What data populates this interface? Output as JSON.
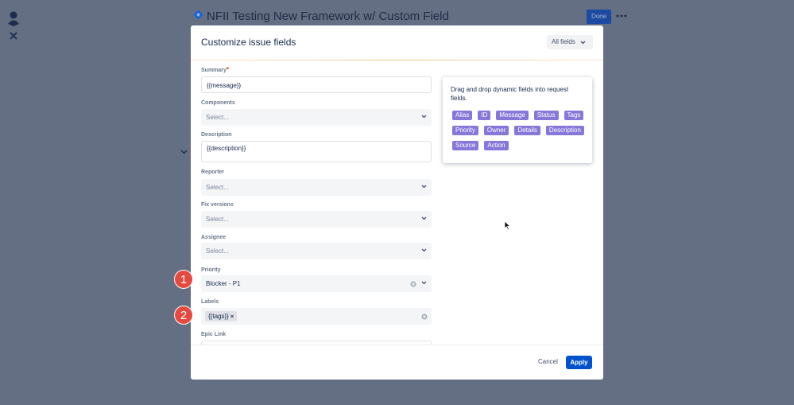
{
  "header": {
    "title": "NFII Testing New Framework w/ Custom Field",
    "done": "Done"
  },
  "modal": {
    "title": "Customize issue fields",
    "filter": "All fields",
    "fields": [
      {
        "label": "Summary",
        "required": "*",
        "value": "{{message}}"
      },
      {
        "label": "Components",
        "value": "Select..."
      },
      {
        "label": "Description",
        "value": "{{description}}"
      },
      {
        "label": "Reporter",
        "value": "Select..."
      },
      {
        "label": "Fix versions",
        "value": "Select..."
      },
      {
        "label": "Assignee",
        "value": "Select..."
      },
      {
        "label": "Priority",
        "value": "Blocker - P1"
      },
      {
        "label": "Labels",
        "value": "{{tags}}"
      },
      {
        "label": "Epic Link"
      }
    ],
    "panel": {
      "hint": "Drag and drop dynamic fields into request fields.",
      "tags": [
        "Alias",
        "ID",
        "Message",
        "Status",
        "Tags",
        "Priority",
        "Owner",
        "Details",
        "Description",
        "Source",
        "Action"
      ]
    },
    "footer": {
      "cancel": "Cancel",
      "apply": "Apply"
    }
  },
  "annotations": [
    "1",
    "2"
  ]
}
